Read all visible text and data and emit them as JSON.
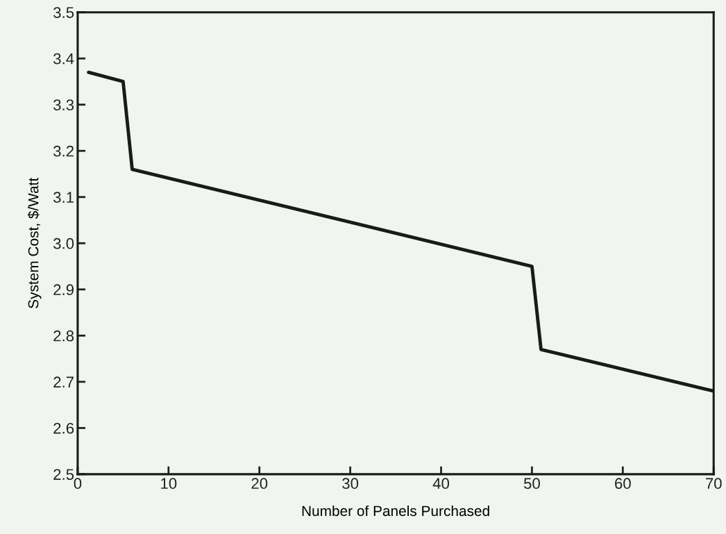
{
  "chart_data": {
    "type": "line",
    "xlabel": "Number of Panels Purchased",
    "ylabel": "System Cost, $/Watt",
    "series": [
      {
        "color": "#1a1a1a",
        "x": [
          1.2,
          5,
          6,
          50,
          51,
          70
        ],
        "values": [
          3.37,
          3.35,
          3.16,
          2.95,
          2.77,
          2.68
        ]
      }
    ],
    "xlim": [
      0,
      70
    ],
    "xticks": [
      0,
      10,
      20,
      30,
      40,
      50,
      60,
      70
    ],
    "ylim": [
      2.5,
      3.5
    ],
    "yticks": [
      2.5,
      2.6,
      2.7,
      2.8,
      2.9,
      {
        "value": 3.0,
        "label": "3.0"
      },
      3.1,
      3.2,
      3.3,
      3.4,
      3.5
    ],
    "grid": false,
    "marker": "none",
    "line_style": "solid"
  }
}
